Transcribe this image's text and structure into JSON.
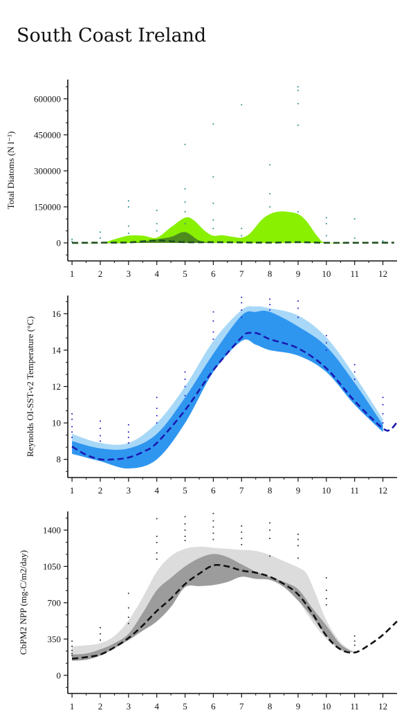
{
  "page": {
    "title": "South Coast Ireland"
  },
  "chart_data": [
    {
      "id": "diatoms",
      "type": "area",
      "ylabel": "Total Diatoms (N l⁻¹)",
      "x_ticks": [
        1,
        2,
        3,
        4,
        5,
        6,
        7,
        8,
        9,
        10,
        11,
        12
      ],
      "y_ticks": [
        0,
        150000,
        300000,
        450000,
        600000
      ],
      "xlim": [
        0.85,
        12.5
      ],
      "ylim": [
        -75000,
        680000
      ],
      "colors": {
        "outer": "#88f000",
        "inner": "#4e8c1e",
        "line": "#1f4f1f",
        "points": "#2a8f8f"
      },
      "outer_band": {
        "x": [
          1,
          2,
          2.5,
          3,
          3.5,
          4,
          4.5,
          5,
          5.3,
          5.7,
          6,
          6.3,
          6.7,
          7,
          7.3,
          7.7,
          8,
          8.3,
          8.6,
          9,
          9.3,
          9.7,
          10,
          11,
          12.4
        ],
        "y": [
          0,
          0,
          15000,
          30000,
          30000,
          22000,
          65000,
          105000,
          95000,
          50000,
          30000,
          32000,
          25000,
          22000,
          40000,
          95000,
          120000,
          130000,
          130000,
          120000,
          90000,
          25000,
          0,
          0,
          0
        ]
      },
      "inner_band": {
        "x": [
          1,
          3,
          4,
          4.5,
          5,
          5.5,
          6,
          6.5,
          12.4
        ],
        "y": [
          0,
          0,
          15000,
          25000,
          45000,
          10000,
          0,
          0,
          0
        ]
      },
      "median_line": {
        "x": [
          1,
          2,
          3,
          4,
          5,
          6,
          7,
          8,
          9,
          10,
          11,
          12.4
        ],
        "y": [
          0,
          1000,
          2000,
          10000,
          3000,
          3000,
          2000,
          1000,
          3000,
          500,
          500,
          1000
        ]
      },
      "observations": [
        {
          "x": 1,
          "y": 15000
        },
        {
          "x": 1,
          "y": 5000
        },
        {
          "x": 2,
          "y": 45000
        },
        {
          "x": 2,
          "y": 20000
        },
        {
          "x": 3,
          "y": 175000
        },
        {
          "x": 3,
          "y": 150000
        },
        {
          "x": 3,
          "y": 70000
        },
        {
          "x": 3,
          "y": 40000
        },
        {
          "x": 4,
          "y": 135000
        },
        {
          "x": 4,
          "y": 80000
        },
        {
          "x": 4,
          "y": 50000
        },
        {
          "x": 5,
          "y": 410000
        },
        {
          "x": 5,
          "y": 225000
        },
        {
          "x": 5,
          "y": 170000
        },
        {
          "x": 5,
          "y": 130000
        },
        {
          "x": 5,
          "y": 80000
        },
        {
          "x": 6,
          "y": 495000
        },
        {
          "x": 6,
          "y": 275000
        },
        {
          "x": 6,
          "y": 165000
        },
        {
          "x": 6,
          "y": 95000
        },
        {
          "x": 6,
          "y": 60000
        },
        {
          "x": 7,
          "y": 575000
        },
        {
          "x": 7,
          "y": 60000
        },
        {
          "x": 7,
          "y": 30000
        },
        {
          "x": 8,
          "y": 325000
        },
        {
          "x": 8,
          "y": 205000
        },
        {
          "x": 8,
          "y": 150000
        },
        {
          "x": 9,
          "y": 650000
        },
        {
          "x": 9,
          "y": 635000
        },
        {
          "x": 9,
          "y": 580000
        },
        {
          "x": 9,
          "y": 490000
        },
        {
          "x": 9,
          "y": 130000
        },
        {
          "x": 10,
          "y": 105000
        },
        {
          "x": 10,
          "y": 80000
        },
        {
          "x": 10,
          "y": 30000
        },
        {
          "x": 11,
          "y": 100000
        },
        {
          "x": 11,
          "y": 20000
        },
        {
          "x": 12,
          "y": 8000
        }
      ]
    },
    {
      "id": "sst",
      "type": "area",
      "ylabel": "Reynolds OI-SST-v2 Temperature (°C)",
      "x_ticks": [
        1,
        2,
        3,
        4,
        5,
        6,
        7,
        8,
        9,
        10,
        11,
        12
      ],
      "y_ticks": [
        8,
        10,
        12,
        14,
        16
      ],
      "xlim": [
        0.85,
        12.5
      ],
      "ylim": [
        7.0,
        17.0
      ],
      "colors": {
        "outer": "#a8d8f8",
        "inner": "#2f96f0",
        "line": "#1a1ab0",
        "points": "#2020c8"
      },
      "outer_band": {
        "x": [
          1,
          2,
          3,
          4,
          5,
          6,
          7,
          7.5,
          8,
          9,
          10,
          11,
          12
        ],
        "upper": [
          9.4,
          8.9,
          8.9,
          10.0,
          12.0,
          14.5,
          16.2,
          16.4,
          16.3,
          15.9,
          14.7,
          12.6,
          10.2
        ],
        "lower": [
          8.3,
          7.9,
          7.5,
          8.0,
          10.0,
          12.8,
          14.5,
          14.3,
          14.0,
          13.7,
          12.8,
          11.0,
          9.5
        ]
      },
      "inner_band": {
        "x": [
          1,
          2,
          3,
          4,
          5,
          6,
          7,
          7.5,
          8,
          9,
          10,
          11,
          12
        ],
        "upper": [
          9.0,
          8.6,
          8.6,
          9.4,
          11.4,
          13.8,
          15.9,
          16.1,
          16.1,
          15.3,
          14.2,
          12.2,
          9.9
        ],
        "lower": [
          8.3,
          7.9,
          7.5,
          8.0,
          10.0,
          12.8,
          14.5,
          14.3,
          14.0,
          13.7,
          12.8,
          11.0,
          9.5
        ]
      },
      "median_line": {
        "x": [
          1,
          1.5,
          2,
          2.5,
          3,
          3.5,
          4,
          5,
          6,
          7,
          7.3,
          7.6,
          8,
          9,
          10,
          11,
          12,
          12.3,
          12.5
        ],
        "y": [
          8.7,
          8.25,
          8.0,
          8.0,
          8.1,
          8.4,
          8.9,
          10.7,
          12.9,
          14.7,
          14.95,
          14.9,
          14.6,
          14.1,
          13.0,
          11.2,
          9.7,
          9.7,
          10.05
        ]
      },
      "observations": [
        {
          "x": 1,
          "y": 10.5
        },
        {
          "x": 1,
          "y": 10.2
        },
        {
          "x": 1,
          "y": 9.8
        },
        {
          "x": 1,
          "y": 9.5
        },
        {
          "x": 1,
          "y": 9.2
        },
        {
          "x": 2,
          "y": 10.1
        },
        {
          "x": 2,
          "y": 9.7
        },
        {
          "x": 2,
          "y": 9.3
        },
        {
          "x": 2,
          "y": 9.0
        },
        {
          "x": 3,
          "y": 9.9
        },
        {
          "x": 3,
          "y": 9.5
        },
        {
          "x": 3,
          "y": 9.2
        },
        {
          "x": 3,
          "y": 8.9
        },
        {
          "x": 4,
          "y": 11.4
        },
        {
          "x": 4,
          "y": 10.8
        },
        {
          "x": 4,
          "y": 10.4
        },
        {
          "x": 4,
          "y": 10.0
        },
        {
          "x": 5,
          "y": 12.8
        },
        {
          "x": 5,
          "y": 12.4
        },
        {
          "x": 5,
          "y": 12.0
        },
        {
          "x": 5,
          "y": 11.5
        },
        {
          "x": 6,
          "y": 16.1
        },
        {
          "x": 6,
          "y": 15.6
        },
        {
          "x": 6,
          "y": 15.0
        },
        {
          "x": 6,
          "y": 14.6
        },
        {
          "x": 7,
          "y": 16.9
        },
        {
          "x": 7,
          "y": 16.6
        },
        {
          "x": 7,
          "y": 16.2
        },
        {
          "x": 7,
          "y": 15.8
        },
        {
          "x": 8,
          "y": 16.8
        },
        {
          "x": 8,
          "y": 16.5
        },
        {
          "x": 8,
          "y": 16.2
        },
        {
          "x": 9,
          "y": 16.7
        },
        {
          "x": 9,
          "y": 16.3
        },
        {
          "x": 9,
          "y": 15.8
        },
        {
          "x": 10,
          "y": 14.8
        },
        {
          "x": 10,
          "y": 14.4
        },
        {
          "x": 10,
          "y": 14.0
        },
        {
          "x": 11,
          "y": 13.2
        },
        {
          "x": 11,
          "y": 12.8
        },
        {
          "x": 11,
          "y": 12.4
        },
        {
          "x": 12,
          "y": 11.4
        },
        {
          "x": 12,
          "y": 11.0
        },
        {
          "x": 12,
          "y": 10.5
        },
        {
          "x": 12,
          "y": 10.0
        }
      ]
    },
    {
      "id": "npp",
      "type": "area",
      "ylabel": "CbPM2 NPP (mg-C/m2/day)",
      "x_ticks": [
        1,
        2,
        3,
        4,
        5,
        6,
        7,
        8,
        9,
        10,
        11,
        12
      ],
      "y_ticks": [
        0,
        350,
        700,
        1050,
        1400
      ],
      "xlim": [
        0.85,
        12.5
      ],
      "ylim": [
        -175,
        1580
      ],
      "colors": {
        "outer": "#dcdcdc",
        "inner": "#9c9c9c",
        "line": "#111111",
        "points": "#333333"
      },
      "outer_band": {
        "x": [
          1,
          1.5,
          2,
          2.5,
          3,
          3.5,
          4,
          4.5,
          5,
          5.5,
          6,
          6.5,
          7,
          7.5,
          8,
          8.5,
          9,
          9.3,
          9.6,
          10,
          10.5,
          11
        ],
        "upper": [
          280,
          290,
          310,
          380,
          530,
          750,
          1000,
          1150,
          1220,
          1240,
          1230,
          1220,
          1210,
          1200,
          1160,
          1100,
          1040,
          980,
          800,
          530,
          320,
          220
        ],
        "lower": [
          140,
          150,
          190,
          260,
          340,
          430,
          520,
          660,
          850,
          860,
          870,
          900,
          950,
          930,
          920,
          850,
          720,
          600,
          480,
          350,
          240,
          220
        ]
      },
      "inner_band": {
        "x": [
          1,
          1.5,
          2,
          2.5,
          3,
          3.5,
          4,
          4.5,
          5,
          5.5,
          6,
          6.5,
          7,
          7.5,
          8,
          8.5,
          9,
          9.5,
          10,
          10.5,
          11
        ],
        "upper": [
          200,
          210,
          250,
          310,
          400,
          600,
          820,
          940,
          1050,
          1130,
          1170,
          1140,
          1070,
          1000,
          950,
          900,
          830,
          650,
          480,
          300,
          220
        ],
        "lower": [
          140,
          150,
          190,
          260,
          340,
          430,
          520,
          660,
          850,
          860,
          870,
          900,
          950,
          930,
          920,
          850,
          720,
          560,
          380,
          250,
          220
        ]
      },
      "median_line": {
        "x": [
          1,
          1.5,
          2,
          2.5,
          3,
          3.5,
          4,
          4.5,
          5,
          5.5,
          6,
          6.5,
          7,
          7.5,
          8,
          8.5,
          9,
          9.5,
          10,
          10.5,
          11,
          11.5,
          12,
          12.5
        ],
        "y": [
          160,
          175,
          200,
          270,
          360,
          480,
          620,
          740,
          880,
          980,
          1060,
          1050,
          1010,
          990,
          950,
          880,
          780,
          600,
          380,
          250,
          220,
          290,
          390,
          520
        ]
      },
      "observations": [
        {
          "x": 1,
          "y": 330
        },
        {
          "x": 1,
          "y": 280
        },
        {
          "x": 1,
          "y": 240
        },
        {
          "x": 1,
          "y": 210
        },
        {
          "x": 1,
          "y": 190
        },
        {
          "x": 2,
          "y": 460
        },
        {
          "x": 2,
          "y": 400
        },
        {
          "x": 2,
          "y": 340
        },
        {
          "x": 3,
          "y": 790
        },
        {
          "x": 3,
          "y": 650
        },
        {
          "x": 3,
          "y": 560
        },
        {
          "x": 3,
          "y": 500
        },
        {
          "x": 4,
          "y": 1510
        },
        {
          "x": 4,
          "y": 1340
        },
        {
          "x": 4,
          "y": 1280
        },
        {
          "x": 4,
          "y": 1180
        },
        {
          "x": 4,
          "y": 1120
        },
        {
          "x": 5,
          "y": 1530
        },
        {
          "x": 5,
          "y": 1460
        },
        {
          "x": 5,
          "y": 1400
        },
        {
          "x": 5,
          "y": 1340
        },
        {
          "x": 5,
          "y": 1300
        },
        {
          "x": 6,
          "y": 1560
        },
        {
          "x": 6,
          "y": 1490
        },
        {
          "x": 6,
          "y": 1430
        },
        {
          "x": 6,
          "y": 1370
        },
        {
          "x": 6,
          "y": 1310
        },
        {
          "x": 7,
          "y": 1440
        },
        {
          "x": 7,
          "y": 1380
        },
        {
          "x": 7,
          "y": 1320
        },
        {
          "x": 7,
          "y": 1260
        },
        {
          "x": 8,
          "y": 1470
        },
        {
          "x": 8,
          "y": 1400
        },
        {
          "x": 8,
          "y": 1320
        },
        {
          "x": 8,
          "y": 1150
        },
        {
          "x": 9,
          "y": 1360
        },
        {
          "x": 9,
          "y": 1310
        },
        {
          "x": 9,
          "y": 1250
        },
        {
          "x": 9,
          "y": 1130
        },
        {
          "x": 10,
          "y": 940
        },
        {
          "x": 10,
          "y": 820
        },
        {
          "x": 10,
          "y": 740
        },
        {
          "x": 10,
          "y": 680
        },
        {
          "x": 11,
          "y": 380
        },
        {
          "x": 11,
          "y": 330
        },
        {
          "x": 11,
          "y": 290
        }
      ]
    }
  ]
}
